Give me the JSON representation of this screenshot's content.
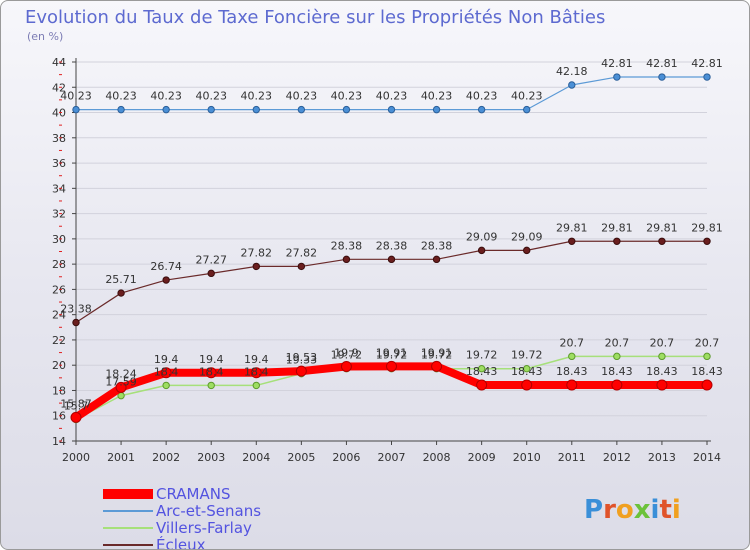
{
  "title": "Evolution du Taux de Taxe Foncière sur les Propriétés Non Bâties",
  "subtitle": "(en %)",
  "logo_text": "Proxiti",
  "chart_data": {
    "type": "line",
    "title": "Evolution du Taux de Taxe Foncière sur les Propriétés Non Bâties",
    "ylabel": "(en %)",
    "xlabel": "",
    "ylim": [
      14,
      44
    ],
    "yticks": [
      14,
      16,
      18,
      20,
      22,
      24,
      26,
      28,
      30,
      32,
      34,
      36,
      38,
      40,
      42,
      44
    ],
    "grid": "horizontal",
    "categories": [
      "2000",
      "2001",
      "2002",
      "2003",
      "2004",
      "2005",
      "2006",
      "2007",
      "2008",
      "2009",
      "2010",
      "2011",
      "2012",
      "2013",
      "2014"
    ],
    "series": [
      {
        "name": "CRAMANS",
        "color": "#ff0000",
        "values": [
          15.87,
          18.24,
          19.4,
          19.4,
          19.4,
          19.53,
          19.9,
          19.91,
          19.91,
          18.43,
          18.43,
          18.43,
          18.43,
          18.43,
          18.43
        ],
        "labels": [
          "15.87",
          "18.24",
          "19.4",
          "19.4",
          "19.4",
          "19.53",
          "19.9",
          "19.91",
          "19.91",
          "18.43",
          "18.43",
          "18.43",
          "18.43",
          "18.43",
          "18.43"
        ]
      },
      {
        "name": "Arc-et-Senans",
        "color": "#5c9ad6",
        "values": [
          40.23,
          40.23,
          40.23,
          40.23,
          40.23,
          40.23,
          40.23,
          40.23,
          40.23,
          40.23,
          40.23,
          42.18,
          42.81,
          42.81,
          42.81
        ],
        "labels": [
          "40.23",
          "40.23",
          "40.23",
          "40.23",
          "40.23",
          "40.23",
          "40.23",
          "40.23",
          "40.23",
          "40.23",
          "40.23",
          "42.18",
          "42.81",
          "42.81",
          "42.81"
        ]
      },
      {
        "name": "Villers-Farlay",
        "color": "#a6e07a",
        "values": [
          15.7,
          17.59,
          18.4,
          18.4,
          18.4,
          19.33,
          19.72,
          19.72,
          19.72,
          19.72,
          19.72,
          20.7,
          20.7,
          20.7,
          20.7
        ],
        "labels": [
          "15.7",
          "17.59",
          "18.4",
          "18.4",
          "18.4",
          "19.33",
          "19.72",
          "19.72",
          "19.72",
          "19.72",
          "19.72",
          "20.7",
          "20.7",
          "20.7",
          "20.7"
        ]
      },
      {
        "name": "Écleux",
        "color": "#6a2a2a",
        "values": [
          23.38,
          25.71,
          26.74,
          27.27,
          27.82,
          27.82,
          28.38,
          28.38,
          28.38,
          29.09,
          29.09,
          29.81,
          29.81,
          29.81,
          29.81
        ],
        "labels": [
          "23.38",
          "25.71",
          "26.74",
          "27.27",
          "27.82",
          "27.82",
          "28.38",
          "28.38",
          "28.38",
          "29.09",
          "29.09",
          "29.81",
          "29.81",
          "29.81",
          "29.81"
        ]
      }
    ]
  }
}
